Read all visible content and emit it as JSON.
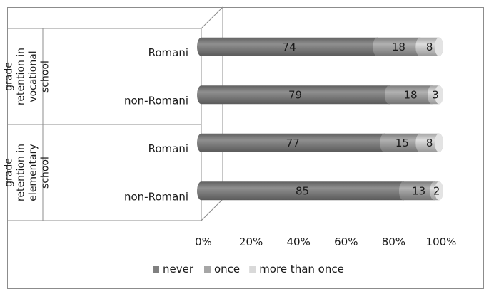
{
  "chart_data": {
    "type": "bar",
    "orientation": "horizontal",
    "stacked": "percent",
    "groups": [
      {
        "label": "grade retention in vocational school",
        "label_lines": [
          "grade",
          "retention in",
          "vocational",
          "school"
        ]
      },
      {
        "label": "grade retention in elementary school",
        "label_lines": [
          "grade",
          "retention in",
          "elementary",
          "school"
        ]
      }
    ],
    "categories": [
      {
        "group": 0,
        "label": "Romani"
      },
      {
        "group": 0,
        "label": "non-Romani"
      },
      {
        "group": 1,
        "label": "Romani"
      },
      {
        "group": 1,
        "label": "non-Romani"
      }
    ],
    "series": [
      {
        "name": "never",
        "color": "#808080",
        "values": [
          74,
          79,
          77,
          85
        ]
      },
      {
        "name": "once",
        "color": "#a6a6a6",
        "values": [
          18,
          18,
          15,
          13
        ]
      },
      {
        "name": "more than once",
        "color": "#d9d9d9",
        "values": [
          8,
          3,
          8,
          2
        ]
      }
    ],
    "xaxis": {
      "ticks": [
        "0%",
        "20%",
        "40%",
        "60%",
        "80%",
        "100%"
      ],
      "range": [
        0,
        100
      ]
    },
    "legend": {
      "position": "bottom"
    },
    "grid": false,
    "style": "3d-cylinder"
  }
}
